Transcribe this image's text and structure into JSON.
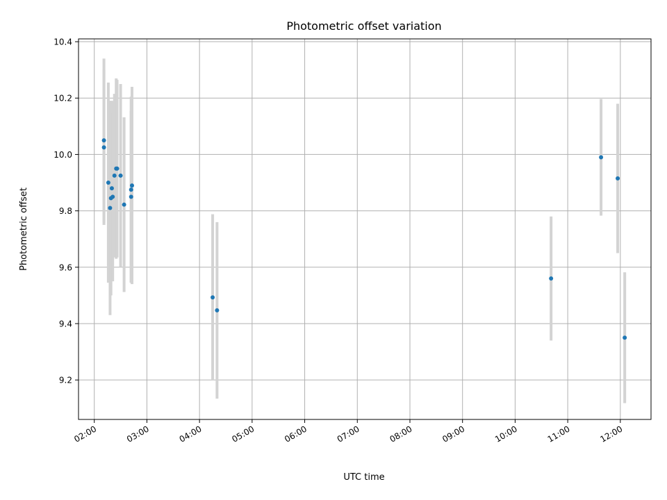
{
  "chart_data": {
    "type": "scatter",
    "title": "Photometric offset variation",
    "xlabel": "UTC time",
    "ylabel": "Photometric offset",
    "xlim": [
      "01:42",
      "12:35"
    ],
    "ylim": [
      9.06,
      10.41
    ],
    "x_ticks": [
      "02:00",
      "03:00",
      "04:00",
      "05:00",
      "06:00",
      "07:00",
      "08:00",
      "09:00",
      "10:00",
      "11:00",
      "12:00"
    ],
    "y_ticks": [
      "9.2",
      "9.4",
      "9.6",
      "9.8",
      "10.0",
      "10.2",
      "10.4"
    ],
    "grid": true,
    "marker_color": "#1f77b4",
    "errorbar_color": "#d3d3d3",
    "series": [
      {
        "points": [
          {
            "x": "02:11",
            "y": 10.05,
            "err": 0.29
          },
          {
            "x": "02:11",
            "y": 10.025,
            "err": 0.275
          },
          {
            "x": "02:16",
            "y": 9.9,
            "err": 0.355
          },
          {
            "x": "02:18",
            "y": 9.81,
            "err": 0.38
          },
          {
            "x": "02:19",
            "y": 9.845,
            "err": 0.345
          },
          {
            "x": "02:20",
            "y": 9.88,
            "err": 0.31
          },
          {
            "x": "02:21",
            "y": 9.85,
            "err": 0.3
          },
          {
            "x": "02:23",
            "y": 9.925,
            "err": 0.29
          },
          {
            "x": "02:25",
            "y": 9.95,
            "err": 0.32
          },
          {
            "x": "02:26",
            "y": 9.95,
            "err": 0.315
          },
          {
            "x": "02:30",
            "y": 9.925,
            "err": 0.325
          },
          {
            "x": "02:34",
            "y": 9.822,
            "err": 0.31
          },
          {
            "x": "02:42",
            "y": 9.875,
            "err": 0.33
          },
          {
            "x": "02:42",
            "y": 9.85,
            "err": 0.305
          },
          {
            "x": "02:43",
            "y": 9.89,
            "err": 0.35
          },
          {
            "x": "04:15",
            "y": 9.493,
            "err": 0.295
          },
          {
            "x": "04:20",
            "y": 9.447,
            "err": 0.313
          },
          {
            "x": "10:41",
            "y": 9.56,
            "err": 0.22
          },
          {
            "x": "11:38",
            "y": 9.99,
            "err": 0.207
          },
          {
            "x": "11:57",
            "y": 9.915,
            "err": 0.265
          },
          {
            "x": "12:05",
            "y": 9.35,
            "err": 0.232
          }
        ]
      }
    ]
  }
}
